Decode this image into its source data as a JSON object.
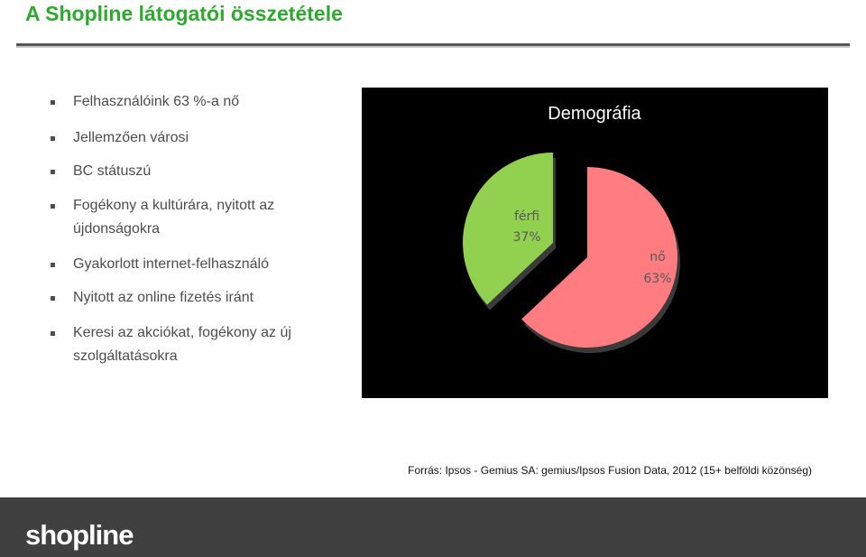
{
  "title": "A Shopline látogatói összetétele",
  "bullets": [
    "Felhasználóink 63 %-a nő",
    "Jellemzően városi",
    "BC státuszú",
    "Fogékony a kultúrára, nyitott az újdonságokra",
    "Gyakorlott internet-felhasználó",
    "Nyitott az online fizetés iránt",
    "Keresi az akciókat, fogékony az új szolgáltatásokra"
  ],
  "source": "Forrás: Ipsos - Gemius SA: gemius/Ipsos Fusion Data, 2012 (15+ belföldi közönség)",
  "footer": {
    "logo": "shopline"
  },
  "colors": {
    "title": "#2fa82f",
    "ferfi": "#92d050",
    "no": "#ff7c80",
    "chart_bg": "#000000",
    "footer_bg": "#404040"
  },
  "chart_data": {
    "type": "pie",
    "title": "Demográfia",
    "slices": [
      {
        "label": "férfi",
        "value": 37,
        "value_label": "37%",
        "color": "#92d050"
      },
      {
        "label": "nő",
        "value": 63,
        "value_label": "63%",
        "color": "#ff7c80"
      }
    ]
  }
}
